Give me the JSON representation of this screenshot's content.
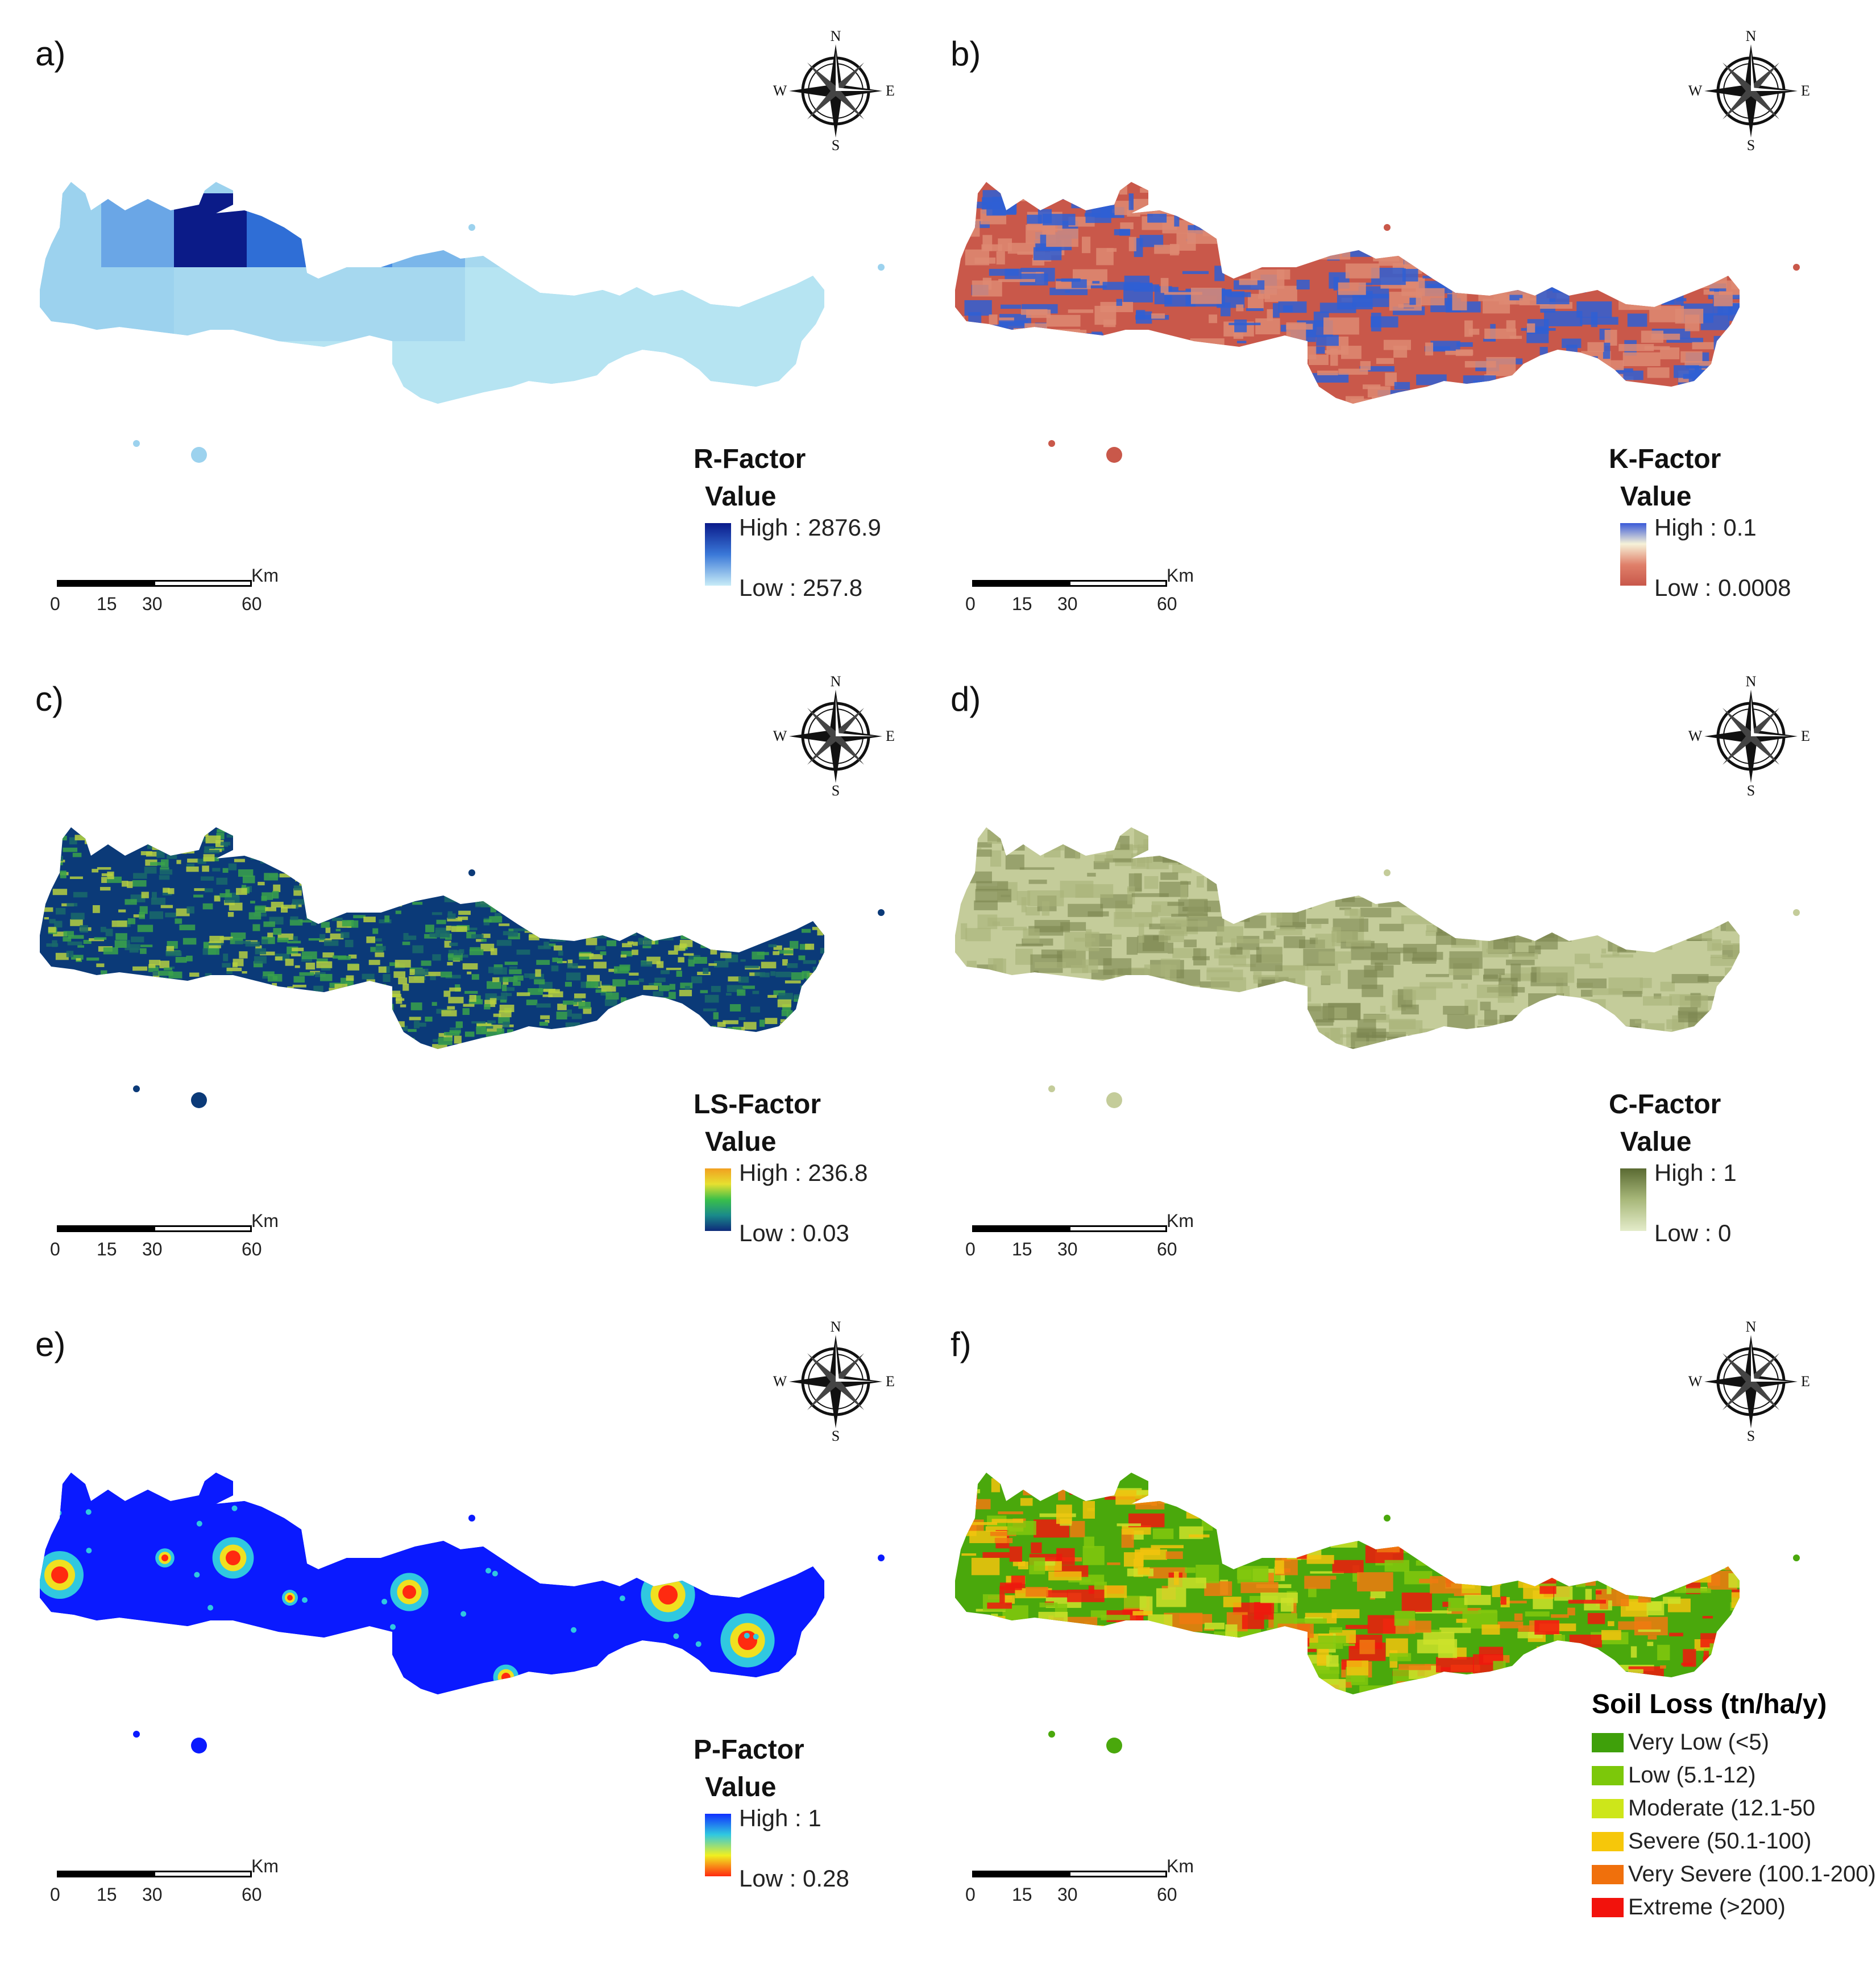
{
  "panels": [
    {
      "letter": "a)",
      "legend_title": "R-Factor",
      "legend_sub": "Value",
      "high": "High : 2876.9",
      "low": "Low : 257.8",
      "ramp": [
        "#0a1a8a",
        "#3a78d8",
        "#c8ecf7"
      ],
      "map_palette": [
        "#9cd2ee",
        "#6aa6e6",
        "#0b1b88",
        "#2f6ed6",
        "#4a8ee2",
        "#7ab6ea",
        "#a6d8ef",
        "#b6e4f2"
      ]
    },
    {
      "letter": "b)",
      "legend_title": "K-Factor",
      "legend_sub": "Value",
      "high": "High : 0.1",
      "low": "Low : 0.0008",
      "ramp": [
        "#3a5ad8",
        "#f6f2d8",
        "#e0806a",
        "#c8574a"
      ],
      "map_palette": [
        "#c9584a",
        "#de8a72",
        "#2f5fd4"
      ]
    },
    {
      "letter": "c)",
      "legend_title": "LS-Factor",
      "legend_sub": "Value",
      "high": "High : 236.8",
      "low": "Low : 0.03",
      "ramp": [
        "#f2a020",
        "#e6e030",
        "#3abf4a",
        "#1a8a8a",
        "#0e2a7a"
      ],
      "map_palette": [
        "#0b3a78",
        "#1a6a6a",
        "#3aa24a",
        "#b6d040"
      ]
    },
    {
      "letter": "d)",
      "legend_title": "C-Factor",
      "legend_sub": "Value",
      "high": "High : 1",
      "low": "Low : 0",
      "ramp": [
        "#5a6a32",
        "#a8b87a",
        "#e4ecca"
      ],
      "map_palette": [
        "#c4cc9a",
        "#a9b27a",
        "#7c8650"
      ]
    },
    {
      "letter": "e)",
      "legend_title": "P-Factor",
      "legend_sub": "Value",
      "high": "High : 1",
      "low": "Low : 0.28",
      "ramp": [
        "#1030ff",
        "#30c8e0",
        "#f0f020",
        "#ff2a10"
      ],
      "map_palette": [
        "#0a1aff",
        "#30c8e0",
        "#f0e020",
        "#ff2a10"
      ]
    },
    {
      "letter": "f)",
      "map_palette": [
        "#4aa80c",
        "#82c80e",
        "#cde22a",
        "#f2c30e",
        "#f07a10",
        "#f0180e"
      ],
      "soil_legend": {
        "title": "Soil Loss (tn/ha/y)",
        "items": [
          {
            "label": "Very Low (<5)",
            "color": "#3fa00a"
          },
          {
            "label": "Low (5.1-12)",
            "color": "#7cc80a"
          },
          {
            "label": "Moderate (12.1-50",
            "color": "#cde61a"
          },
          {
            "label": "Severe (50.1-100)",
            "color": "#f6c70a"
          },
          {
            "label": "Very Severe (100.1-200)",
            "color": "#f0700c"
          },
          {
            "label": "Extreme (>200)",
            "color": "#f2120c"
          }
        ]
      }
    }
  ],
  "scale": {
    "unit": "Km",
    "ticks": [
      "0",
      "15",
      "30",
      "60"
    ]
  },
  "compass": {
    "n": "N",
    "s": "S",
    "e": "E",
    "w": "W"
  }
}
